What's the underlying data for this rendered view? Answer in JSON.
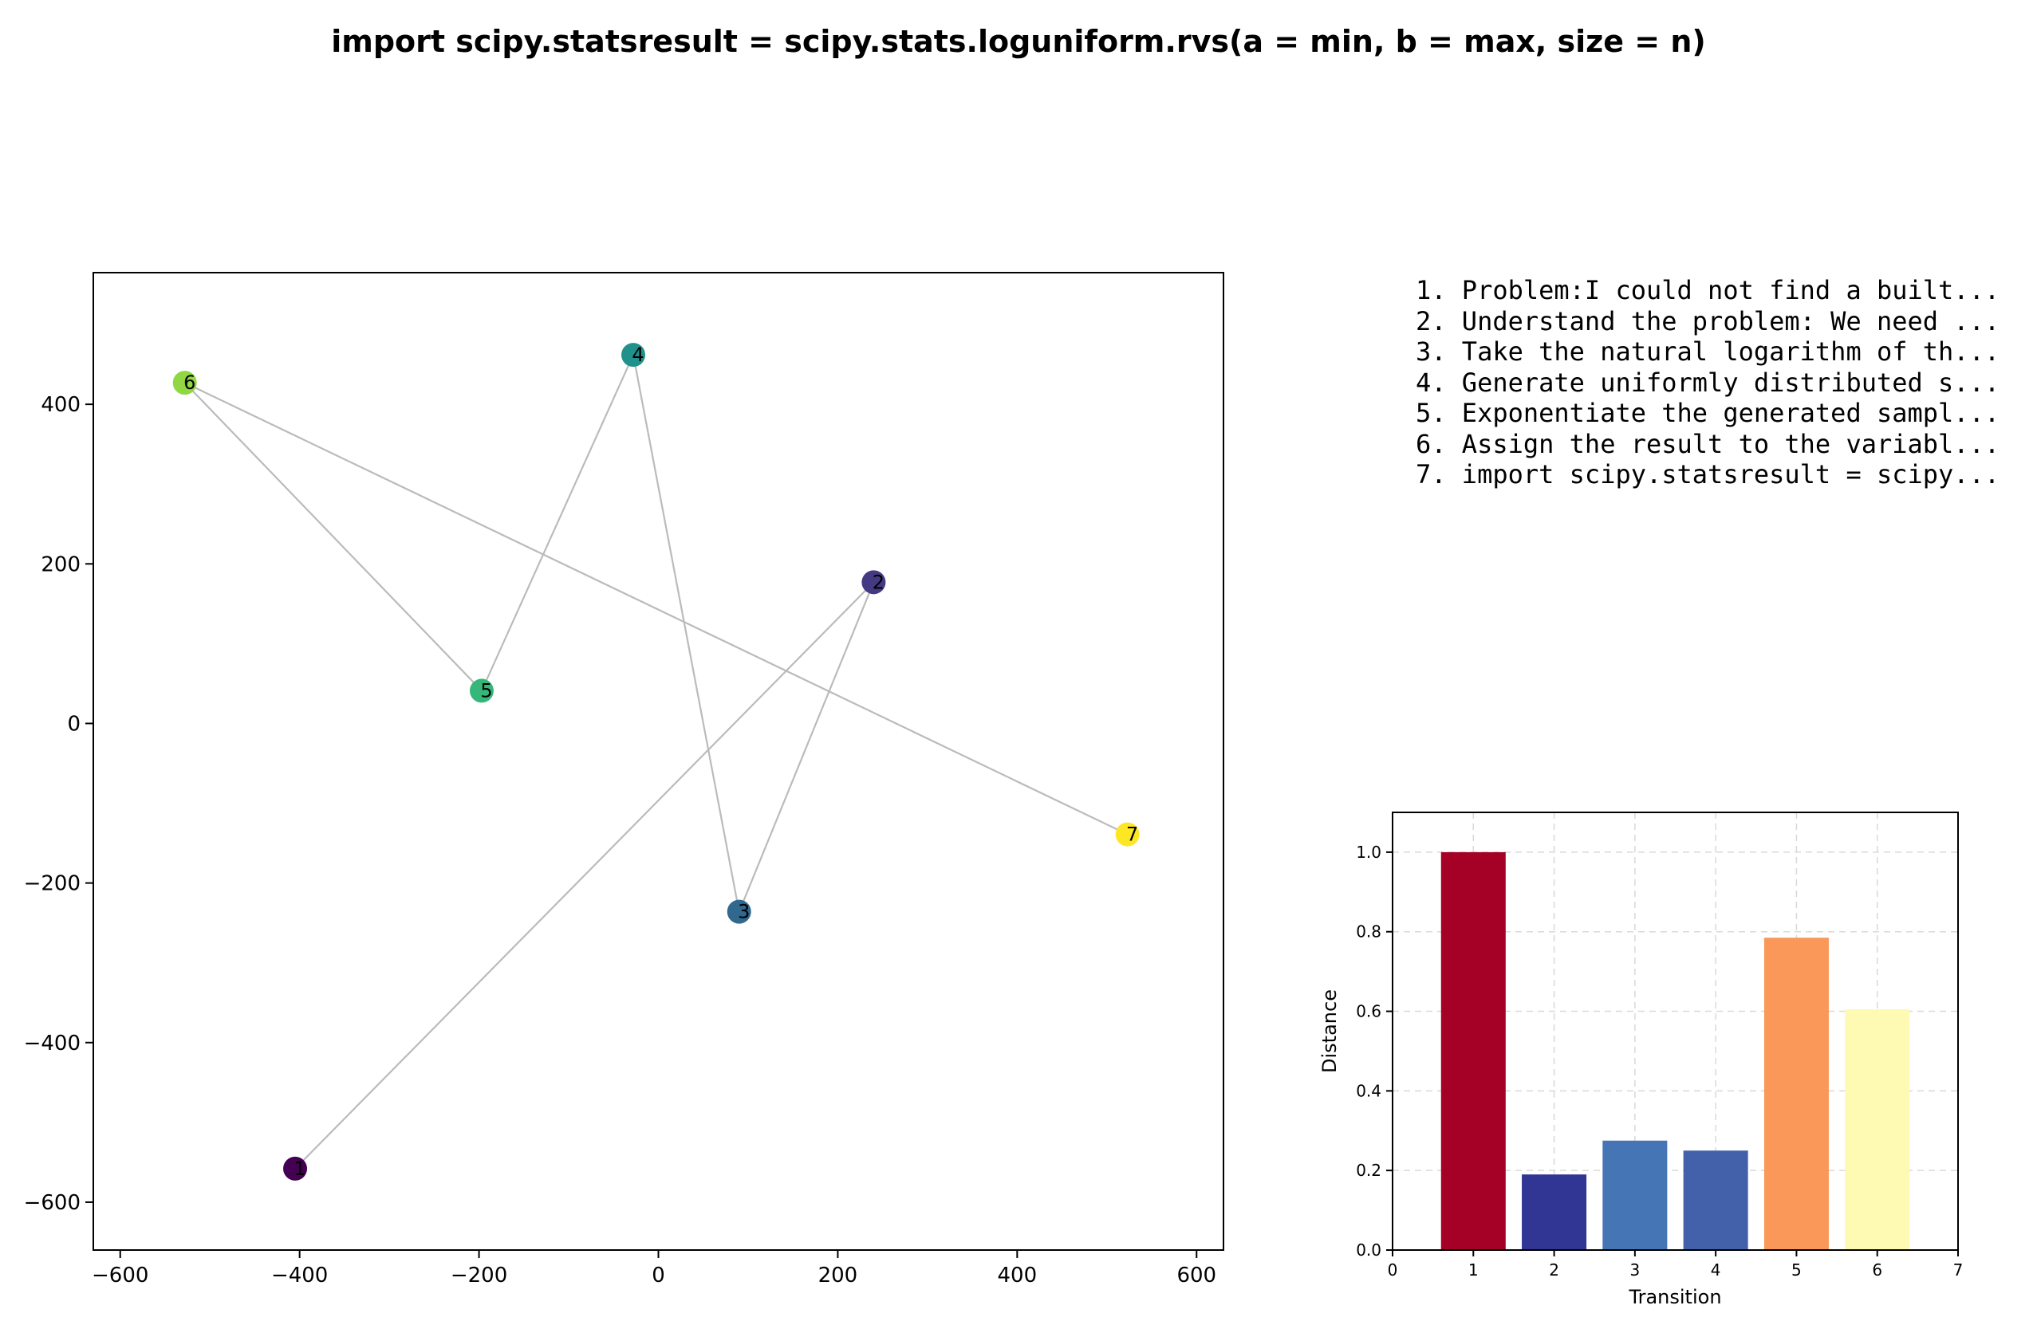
{
  "title": "import scipy.statsresult = scipy.stats.loguniform.rvs(a = min, b = max, size = n)",
  "steps": [
    "1. Problem:I could not find a built...",
    "2. Understand the problem: We need ...",
    "3. Take the natural logarithm of th...",
    "4. Generate uniformly distributed s...",
    "5. Exponentiate the generated sampl...",
    "6. Assign the result to the variabl...",
    "7. import scipy.statsresult = scipy..."
  ],
  "chart_data": [
    {
      "type": "scatter",
      "title": "",
      "xlabel": "",
      "ylabel": "",
      "xlim": [
        -630,
        630
      ],
      "ylim": [
        -660,
        565
      ],
      "xticks": [
        -600,
        -400,
        -200,
        0,
        200,
        400,
        600
      ],
      "yticks": [
        -600,
        -400,
        -200,
        0,
        200,
        400
      ],
      "connected": true,
      "colormap": "viridis",
      "points": [
        {
          "label": "1",
          "x": -405,
          "y": -558,
          "color": "#440154"
        },
        {
          "label": "2",
          "x": 240,
          "y": 177,
          "color": "#443983"
        },
        {
          "label": "3",
          "x": 90,
          "y": -236,
          "color": "#31688e"
        },
        {
          "label": "4",
          "x": -28,
          "y": 462,
          "color": "#21918c"
        },
        {
          "label": "5",
          "x": -197,
          "y": 41,
          "color": "#35b779"
        },
        {
          "label": "6",
          "x": -528,
          "y": 427,
          "color": "#90d743"
        },
        {
          "label": "7",
          "x": 523,
          "y": -139,
          "color": "#fde725"
        }
      ],
      "line_color": "#bbbbbb"
    },
    {
      "type": "bar",
      "title": "",
      "xlabel": "Transition",
      "ylabel": "Distance",
      "xlim": [
        0,
        7
      ],
      "ylim": [
        0,
        1.1
      ],
      "xticks": [
        0,
        1,
        2,
        3,
        4,
        5,
        6,
        7
      ],
      "yticks": [
        0.0,
        0.2,
        0.4,
        0.6,
        0.8,
        1.0
      ],
      "grid": true,
      "categories": [
        1,
        2,
        3,
        4,
        5,
        6
      ],
      "values": [
        1.0,
        0.19,
        0.275,
        0.25,
        0.785,
        0.605
      ],
      "colors": [
        "#a50026",
        "#313695",
        "#4575b4",
        "#4361ab",
        "#f99858",
        "#fffab3"
      ]
    }
  ]
}
